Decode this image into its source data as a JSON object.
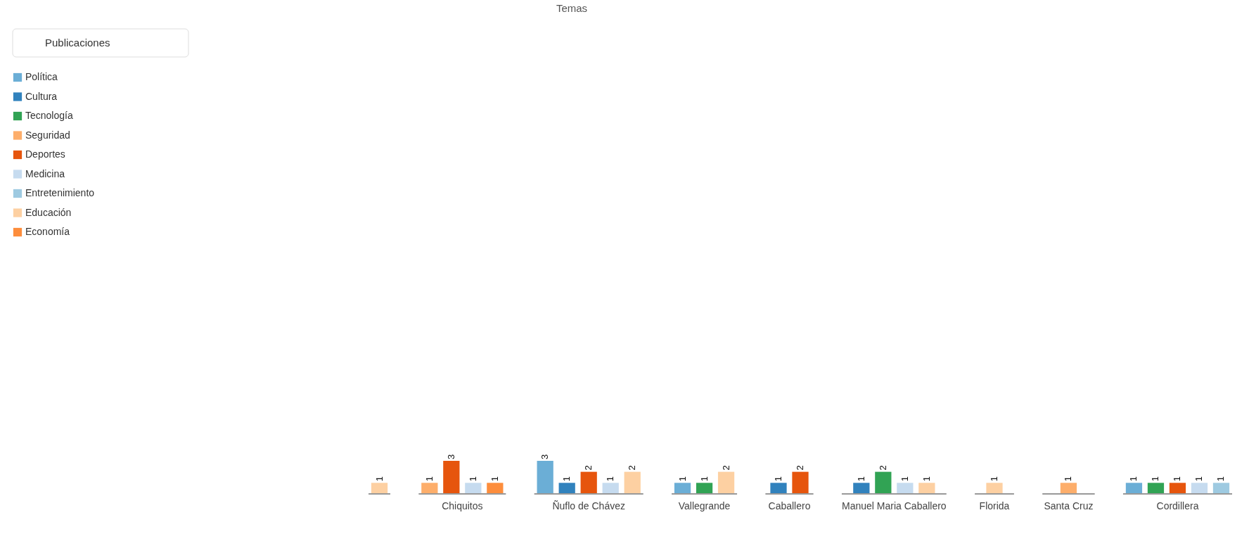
{
  "chart_data": {
    "type": "bar",
    "title": "Temas",
    "annotations": [
      "Publicaciones"
    ],
    "categories": [
      null,
      "Chiquitos",
      "Ñuflo de Chávez",
      "Vallegrande",
      "Caballero",
      "Manuel Maria Caballero",
      "Florida",
      "Santa Cruz",
      "Cordillera"
    ],
    "series": [
      {
        "name": "Política",
        "color": "#6baed6",
        "values": [
          null,
          null,
          3,
          1,
          null,
          null,
          null,
          null,
          1
        ]
      },
      {
        "name": "Cultura",
        "color": "#3182bd",
        "values": [
          null,
          null,
          1,
          null,
          1,
          1,
          null,
          null,
          null
        ]
      },
      {
        "name": "Tecnología",
        "color": "#31a354",
        "values": [
          null,
          null,
          null,
          1,
          null,
          2,
          null,
          null,
          1
        ]
      },
      {
        "name": "Seguridad",
        "color": "#fdae6b",
        "values": [
          null,
          1,
          null,
          null,
          null,
          null,
          null,
          1,
          null
        ]
      },
      {
        "name": "Deportes",
        "color": "#e6550d",
        "values": [
          null,
          3,
          2,
          null,
          2,
          null,
          null,
          null,
          1
        ]
      },
      {
        "name": "Medicina",
        "color": "#c6dbef",
        "values": [
          null,
          1,
          1,
          null,
          null,
          1,
          null,
          null,
          1
        ]
      },
      {
        "name": "Entretenimiento",
        "color": "#9ecae1",
        "values": [
          null,
          null,
          null,
          null,
          null,
          null,
          null,
          null,
          1
        ]
      },
      {
        "name": "Educación",
        "color": "#fdd0a2",
        "values": [
          1,
          null,
          2,
          2,
          null,
          1,
          1,
          null,
          null
        ]
      },
      {
        "name": "Economía",
        "color": "#fd8d3c",
        "values": [
          null,
          1,
          null,
          null,
          null,
          null,
          null,
          null,
          null
        ]
      }
    ],
    "data_labels": true,
    "legend": "top left"
  }
}
